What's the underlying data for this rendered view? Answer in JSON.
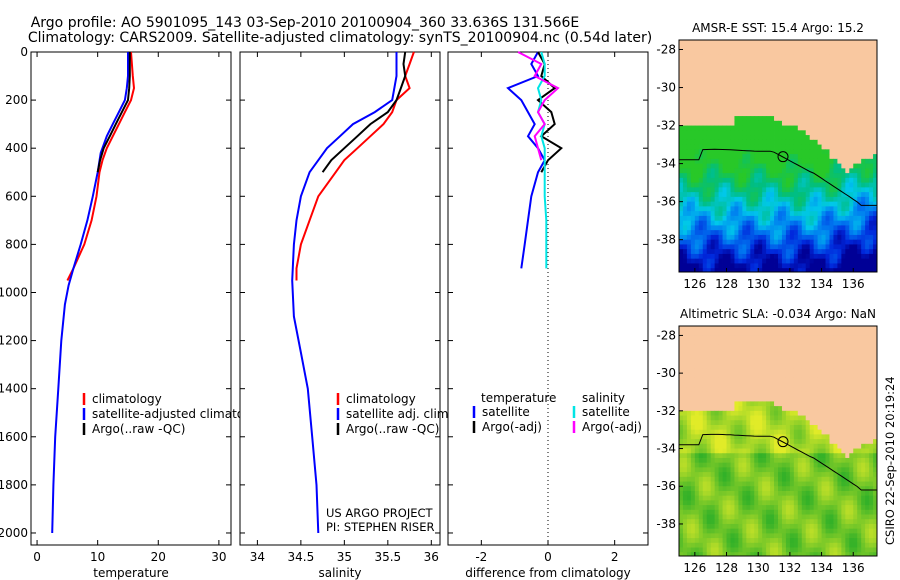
{
  "figure": {
    "title_line1": "Argo profile: AO 5901095_143 03-Sep-2010 20100904_360 33.636S 131.566E",
    "title_line2": "Climatology: CARS2009. Satellite-adjusted climatology: synTS_20100904.nc (0.54d later)",
    "credit1": "US ARGO PROJECT",
    "credit2": "PI: STEPHEN RISER",
    "stamp": "CSIRO 22-Sep-2010 20:19:24"
  },
  "colors": {
    "climatology": "#ff0000",
    "satellite": "#0000ff",
    "argo": "#000000",
    "sal_satellite": "#00e5e5",
    "sal_argo": "#ff00ff",
    "land": "#f9c8a0"
  },
  "chart_data": [
    {
      "type": "line",
      "panel": "temperature",
      "xlabel": "temperature",
      "ylabel": "",
      "xlim": [
        -1,
        32
      ],
      "ylim": [
        2050,
        0
      ],
      "xticks": [
        0,
        10,
        20,
        30
      ],
      "yticks": [
        0,
        200,
        400,
        600,
        800,
        1000,
        1200,
        1400,
        1600,
        1800,
        2000
      ],
      "legend": [
        "climatology",
        "satellite-adjusted climatology",
        "Argo(..raw -QC)"
      ],
      "series": [
        {
          "name": "climatology",
          "color": "#ff0000",
          "points": [
            [
              15.5,
              0
            ],
            [
              15.8,
              100
            ],
            [
              16.0,
              150
            ],
            [
              15.5,
              200
            ],
            [
              14.5,
              250
            ],
            [
              13.5,
              300
            ],
            [
              12.5,
              350
            ],
            [
              11.5,
              400
            ],
            [
              10.8,
              450
            ],
            [
              10.3,
              500
            ],
            [
              9.8,
              600
            ],
            [
              9.0,
              700
            ],
            [
              7.8,
              800
            ],
            [
              6.0,
              900
            ],
            [
              5.0,
              950
            ]
          ]
        },
        {
          "name": "satellite-adjusted climatology",
          "color": "#0000ff",
          "points": [
            [
              15.0,
              0
            ],
            [
              15.0,
              50
            ],
            [
              15.0,
              100
            ],
            [
              14.8,
              150
            ],
            [
              14.5,
              200
            ],
            [
              13.5,
              250
            ],
            [
              12.5,
              300
            ],
            [
              11.5,
              350
            ],
            [
              10.5,
              420
            ],
            [
              10.0,
              500
            ],
            [
              9.2,
              600
            ],
            [
              8.3,
              700
            ],
            [
              7.2,
              800
            ],
            [
              6.0,
              900
            ],
            [
              5.2,
              970
            ],
            [
              4.6,
              1050
            ],
            [
              4.0,
              1200
            ],
            [
              3.5,
              1400
            ],
            [
              3.0,
              1600
            ],
            [
              2.7,
              1800
            ],
            [
              2.5,
              2000
            ]
          ]
        },
        {
          "name": "Argo(..raw -QC)",
          "color": "#000000",
          "points": [
            [
              15.3,
              0
            ],
            [
              15.3,
              50
            ],
            [
              15.3,
              100
            ],
            [
              15.2,
              150
            ],
            [
              15.0,
              200
            ],
            [
              14.0,
              250
            ],
            [
              13.0,
              300
            ],
            [
              12.0,
              350
            ],
            [
              11.0,
              400
            ],
            [
              10.4,
              450
            ],
            [
              10.0,
              500
            ]
          ]
        }
      ]
    },
    {
      "type": "line",
      "panel": "salinity",
      "xlabel": "salinity",
      "ylabel": "",
      "xlim": [
        33.8,
        36.1
      ],
      "ylim": [
        2050,
        0
      ],
      "xticks": [
        34,
        34.5,
        35,
        35.5,
        36
      ],
      "xticklabels": [
        "34",
        "34.5",
        "35",
        "35.5",
        "36"
      ],
      "legend": [
        "climatology",
        "satellite adj. clim.",
        "Argo(..raw -QC)"
      ],
      "series": [
        {
          "name": "climatology",
          "color": "#ff0000",
          "points": [
            [
              35.8,
              0
            ],
            [
              35.75,
              50
            ],
            [
              35.7,
              100
            ],
            [
              35.75,
              150
            ],
            [
              35.6,
              200
            ],
            [
              35.55,
              250
            ],
            [
              35.45,
              300
            ],
            [
              35.3,
              350
            ],
            [
              35.15,
              400
            ],
            [
              35.0,
              450
            ],
            [
              34.9,
              500
            ],
            [
              34.7,
              600
            ],
            [
              34.6,
              700
            ],
            [
              34.5,
              800
            ],
            [
              34.45,
              900
            ],
            [
              34.45,
              950
            ]
          ]
        },
        {
          "name": "satellite adj. clim.",
          "color": "#0000ff",
          "points": [
            [
              35.6,
              0
            ],
            [
              35.6,
              100
            ],
            [
              35.55,
              200
            ],
            [
              35.35,
              250
            ],
            [
              35.1,
              300
            ],
            [
              34.95,
              350
            ],
            [
              34.8,
              400
            ],
            [
              34.7,
              450
            ],
            [
              34.6,
              500
            ],
            [
              34.5,
              600
            ],
            [
              34.45,
              700
            ],
            [
              34.42,
              800
            ],
            [
              34.4,
              950
            ],
            [
              34.42,
              1100
            ],
            [
              34.5,
              1250
            ],
            [
              34.58,
              1400
            ],
            [
              34.63,
              1600
            ],
            [
              34.68,
              1800
            ],
            [
              34.7,
              2000
            ]
          ]
        },
        {
          "name": "Argo(..raw -QC)",
          "color": "#000000",
          "points": [
            [
              35.7,
              0
            ],
            [
              35.68,
              50
            ],
            [
              35.7,
              100
            ],
            [
              35.65,
              150
            ],
            [
              35.6,
              200
            ],
            [
              35.5,
              250
            ],
            [
              35.3,
              300
            ],
            [
              35.15,
              350
            ],
            [
              35.0,
              400
            ],
            [
              34.85,
              450
            ],
            [
              34.75,
              500
            ]
          ]
        }
      ]
    },
    {
      "type": "line",
      "panel": "difference",
      "xlabel": "difference from climatology",
      "ylabel": "",
      "xlim": [
        -3.0,
        3.0
      ],
      "ylim": [
        2050,
        0
      ],
      "xticks": [
        -2,
        0,
        2
      ],
      "zero_line": true,
      "legend_headers": [
        "temperature",
        "salinity"
      ],
      "legend": [
        "satellite",
        "Argo(-adj)",
        "satellite",
        "Argo(-adj)"
      ],
      "series": [
        {
          "name": "satellite",
          "group": "temperature",
          "color": "#0000ff",
          "points": [
            [
              -0.3,
              0
            ],
            [
              -0.5,
              50
            ],
            [
              -0.3,
              100
            ],
            [
              -1.2,
              150
            ],
            [
              -0.8,
              200
            ],
            [
              -0.6,
              250
            ],
            [
              -0.4,
              300
            ],
            [
              -0.6,
              350
            ],
            [
              -0.3,
              400
            ],
            [
              -0.1,
              450
            ],
            [
              -0.3,
              500
            ],
            [
              -0.5,
              600
            ],
            [
              -0.6,
              700
            ],
            [
              -0.7,
              800
            ],
            [
              -0.8,
              900
            ]
          ]
        },
        {
          "name": "Argo(-adj)",
          "group": "temperature",
          "color": "#000000",
          "points": [
            [
              -0.3,
              0
            ],
            [
              -0.1,
              50
            ],
            [
              -0.2,
              100
            ],
            [
              0.2,
              150
            ],
            [
              -0.3,
              200
            ],
            [
              0.1,
              250
            ],
            [
              0.2,
              300
            ],
            [
              -0.2,
              350
            ],
            [
              0.4,
              400
            ],
            [
              0.0,
              450
            ],
            [
              -0.2,
              500
            ]
          ]
        },
        {
          "name": "satellite",
          "group": "salinity",
          "color": "#00e5e5",
          "points": [
            [
              -0.2,
              0
            ],
            [
              -0.1,
              50
            ],
            [
              -0.1,
              100
            ],
            [
              -0.3,
              150
            ],
            [
              -0.2,
              200
            ],
            [
              -0.3,
              250
            ],
            [
              -0.1,
              300
            ],
            [
              -0.2,
              350
            ],
            [
              -0.1,
              400
            ],
            [
              -0.1,
              500
            ],
            [
              -0.1,
              600
            ],
            [
              -0.05,
              700
            ],
            [
              -0.05,
              800
            ],
            [
              -0.05,
              900
            ]
          ]
        },
        {
          "name": "Argo(-adj)",
          "group": "salinity",
          "color": "#ff00ff",
          "points": [
            [
              -0.9,
              0
            ],
            [
              -0.2,
              50
            ],
            [
              -0.4,
              100
            ],
            [
              0.3,
              150
            ],
            [
              -0.1,
              200
            ],
            [
              -0.3,
              250
            ],
            [
              -0.1,
              300
            ],
            [
              -0.4,
              350
            ],
            [
              -0.3,
              400
            ],
            [
              -0.2,
              450
            ]
          ]
        }
      ]
    },
    {
      "type": "heatmap",
      "panel": "map",
      "title": "AMSR-E SST: 15.4 Argo: 15.2",
      "xlim": [
        125,
        137.5
      ],
      "ylim": [
        -39.7,
        -27.5
      ],
      "xticks": [
        126,
        128,
        130,
        132,
        134,
        136
      ],
      "yticks": [
        -28,
        -30,
        -32,
        -34,
        -36,
        -38
      ],
      "marker": [
        131.566,
        -33.636
      ],
      "palette": "sst"
    },
    {
      "type": "heatmap",
      "panel": "map",
      "title": "Altimetric SLA: -0.034 Argo: NaN",
      "xlim": [
        125,
        137.5
      ],
      "ylim": [
        -39.7,
        -27.5
      ],
      "xticks": [
        126,
        128,
        130,
        132,
        134,
        136
      ],
      "yticks": [
        -28,
        -30,
        -32,
        -34,
        -36,
        -38
      ],
      "marker": [
        131.566,
        -33.636
      ],
      "palette": "sla"
    }
  ]
}
